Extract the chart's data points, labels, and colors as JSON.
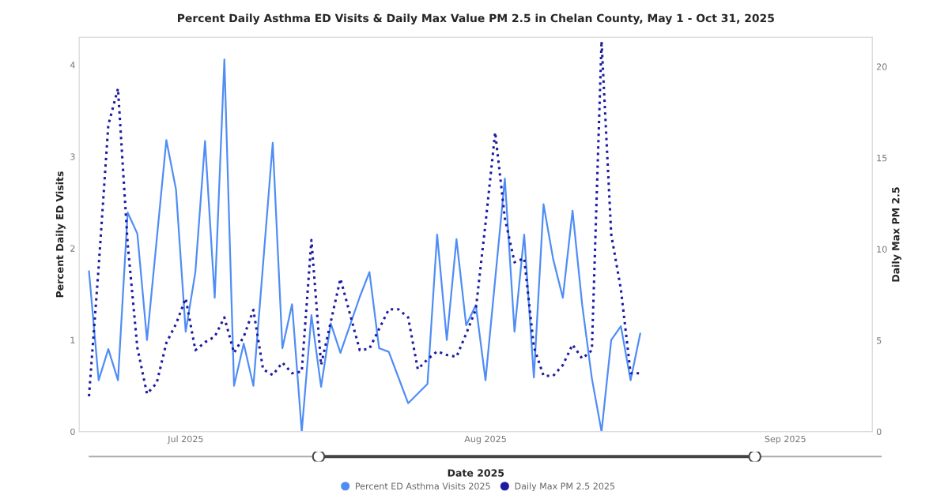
{
  "chart_data": {
    "type": "line",
    "title": "Percent Daily Asthma ED Visits & Daily Max Value PM 2.5 in Chelan County, May 1 - Oct 31, 2025",
    "xlabel": "Date 2025",
    "ylabel": "Percent Daily ED Visits",
    "y2label": "Daily Max PM 2.5",
    "xlim": [
      "2025-06-20",
      "2025-09-10"
    ],
    "xticks": [
      {
        "value": "2025-07-01",
        "label": "Jul 2025"
      },
      {
        "value": "2025-08-01",
        "label": "Aug 2025"
      },
      {
        "value": "2025-09-01",
        "label": "Sep 2025"
      }
    ],
    "ylim": [
      0,
      4.3
    ],
    "yticks": [
      0,
      1,
      2,
      3,
      4
    ],
    "y2lim": [
      0,
      21.6
    ],
    "y2ticks": [
      0,
      5,
      10,
      15,
      20
    ],
    "legend": "bottom",
    "grid": false,
    "series": [
      {
        "name": "Percent ED Asthma Visits 2025",
        "color": "#4f8df5",
        "line_style": "solid",
        "x": [
          "2025-06-21",
          "2025-06-22",
          "2025-06-23",
          "2025-06-24",
          "2025-06-25",
          "2025-06-26",
          "2025-06-27",
          "2025-06-29",
          "2025-06-30",
          "2025-07-01",
          "2025-07-02",
          "2025-07-03",
          "2025-07-04",
          "2025-07-05",
          "2025-07-06",
          "2025-07-07",
          "2025-07-08",
          "2025-07-10",
          "2025-07-11",
          "2025-07-12",
          "2025-07-13",
          "2025-07-14",
          "2025-07-15",
          "2025-07-16",
          "2025-07-17",
          "2025-07-19",
          "2025-07-20",
          "2025-07-21",
          "2025-07-22",
          "2025-07-24",
          "2025-07-26",
          "2025-07-27",
          "2025-07-28",
          "2025-07-29",
          "2025-07-30",
          "2025-07-31",
          "2025-08-01",
          "2025-08-03",
          "2025-08-04",
          "2025-08-05",
          "2025-08-06",
          "2025-08-07",
          "2025-08-08",
          "2025-08-09",
          "2025-08-10",
          "2025-08-11",
          "2025-08-12",
          "2025-08-13",
          "2025-08-14",
          "2025-08-15",
          "2025-08-16",
          "2025-08-17"
        ],
        "values": [
          1.75,
          0.56,
          0.9,
          0.56,
          2.39,
          2.16,
          1.0,
          3.18,
          2.64,
          1.09,
          1.74,
          3.17,
          1.46,
          4.06,
          0.5,
          0.96,
          0.5,
          3.15,
          0.91,
          1.39,
          0.0,
          1.27,
          0.49,
          1.18,
          0.86,
          1.47,
          1.74,
          0.91,
          0.87,
          0.31,
          0.52,
          2.15,
          1.0,
          2.1,
          1.16,
          1.38,
          0.56,
          2.76,
          1.09,
          2.15,
          0.59,
          2.48,
          1.88,
          1.46,
          2.41,
          1.38,
          0.58,
          0.0,
          1.0,
          1.15,
          0.56,
          1.07
        ]
      },
      {
        "name": "Daily Max PM 2.5 2025",
        "color": "#1c1aa0",
        "axis": "y2",
        "line_style": "dotted",
        "x": [
          "2025-06-21",
          "2025-06-22",
          "2025-06-23",
          "2025-06-24",
          "2025-06-25",
          "2025-06-26",
          "2025-06-27",
          "2025-06-28",
          "2025-06-29",
          "2025-06-30",
          "2025-07-01",
          "2025-07-02",
          "2025-07-03",
          "2025-07-04",
          "2025-07-05",
          "2025-07-06",
          "2025-07-07",
          "2025-07-08",
          "2025-07-09",
          "2025-07-10",
          "2025-07-11",
          "2025-07-12",
          "2025-07-13",
          "2025-07-14",
          "2025-07-15",
          "2025-07-17",
          "2025-07-19",
          "2025-07-20",
          "2025-07-22",
          "2025-07-23",
          "2025-07-24",
          "2025-07-25",
          "2025-07-26",
          "2025-07-27",
          "2025-07-28",
          "2025-07-29",
          "2025-07-30",
          "2025-07-31",
          "2025-08-01",
          "2025-08-02",
          "2025-08-03",
          "2025-08-04",
          "2025-08-05",
          "2025-08-06",
          "2025-08-07",
          "2025-08-08",
          "2025-08-09",
          "2025-08-10",
          "2025-08-11",
          "2025-08-12",
          "2025-08-13",
          "2025-08-14",
          "2025-08-15",
          "2025-08-16",
          "2025-08-17"
        ],
        "values": [
          1.94,
          9,
          16.8,
          18.8,
          10.3,
          4.6,
          2.07,
          2.66,
          4.86,
          5.9,
          7.3,
          4.46,
          4.9,
          5.2,
          6.26,
          4.32,
          5.2,
          6.67,
          3.42,
          3.1,
          3.78,
          3.2,
          3.29,
          10.5,
          3.65,
          8.38,
          4.46,
          4.55,
          6.7,
          6.7,
          6.26,
          3.42,
          3.96,
          4.4,
          4.2,
          4.1,
          5.36,
          6.7,
          11.4,
          16.4,
          11.7,
          9.28,
          9.5,
          4.64,
          3.06,
          3.06,
          3.65,
          4.77,
          4.0,
          4.46,
          21.4,
          10.8,
          7.8,
          3.2,
          3.2
        ]
      }
    ]
  }
}
